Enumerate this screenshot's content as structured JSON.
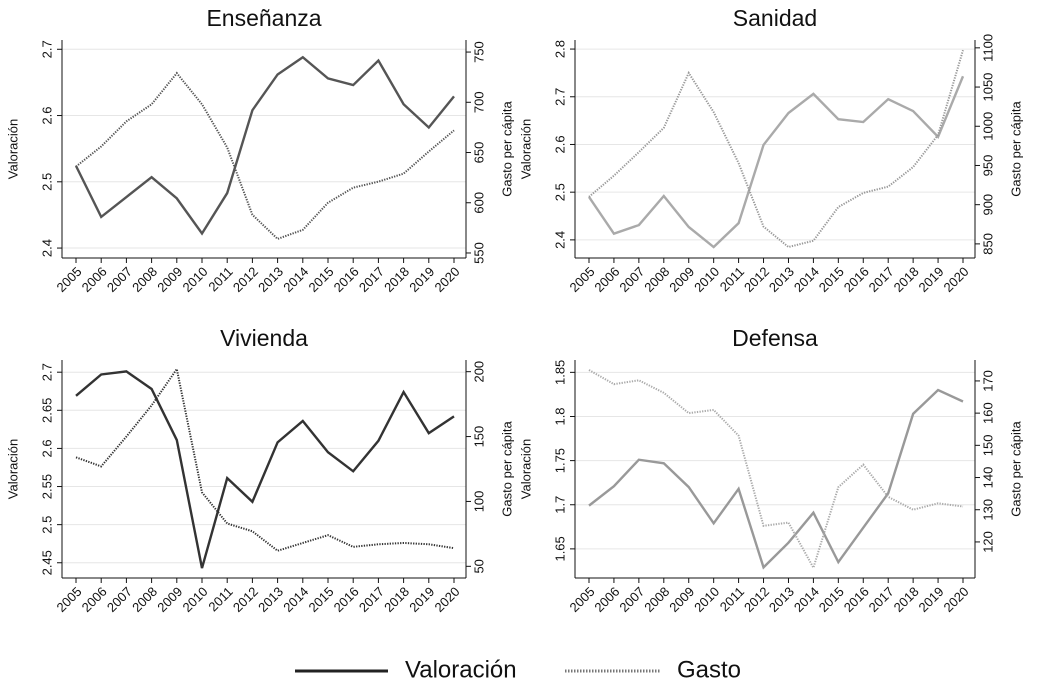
{
  "chart_data": [
    {
      "type": "line",
      "title": "Enseñanza",
      "ylabel": "Valoración",
      "y2label": "Gasto per cápita",
      "categories": [
        "2005",
        "2006",
        "2007",
        "2008",
        "2009",
        "2010",
        "2011",
        "2012",
        "2013",
        "2014",
        "2015",
        "2016",
        "2017",
        "2018",
        "2019",
        "2020"
      ],
      "ylim": [
        2.385,
        2.714
      ],
      "yticks": [
        2.4,
        2.5,
        2.6,
        2.7
      ],
      "y2lim": [
        545,
        762
      ],
      "y2ticks": [
        550,
        600,
        650,
        700,
        750
      ],
      "grid": true,
      "series": [
        {
          "name": "Valoración",
          "color": "#555555",
          "values": [
            2.524,
            2.447,
            2.477,
            2.507,
            2.475,
            2.422,
            2.483,
            2.608,
            2.662,
            2.688,
            2.656,
            2.646,
            2.683,
            2.617,
            2.582,
            2.629
          ]
        },
        {
          "name": "Gasto",
          "color": "#555555",
          "axis": "y2",
          "values": [
            636,
            656,
            681,
            698,
            729,
            698,
            655,
            588,
            564,
            573,
            600,
            615,
            621,
            629,
            651,
            672
          ]
        }
      ]
    },
    {
      "type": "line",
      "title": "Sanidad",
      "ylabel": "Valoración",
      "y2label": "Gasto per cápita",
      "categories": [
        "2005",
        "2006",
        "2007",
        "2008",
        "2009",
        "2010",
        "2011",
        "2012",
        "2013",
        "2014",
        "2015",
        "2016",
        "2017",
        "2018",
        "2019",
        "2020"
      ],
      "ylim": [
        2.362,
        2.819
      ],
      "yticks": [
        2.4,
        2.5,
        2.6,
        2.7,
        2.8
      ],
      "y2lim": [
        832,
        1110
      ],
      "y2ticks": [
        850,
        900,
        950,
        1000,
        1050,
        1100
      ],
      "grid": true,
      "series": [
        {
          "name": "Valoración",
          "color": "#aaaaaa",
          "values": [
            2.49,
            2.413,
            2.431,
            2.492,
            2.427,
            2.385,
            2.435,
            2.599,
            2.666,
            2.706,
            2.653,
            2.647,
            2.695,
            2.67,
            2.616,
            2.743
          ]
        },
        {
          "name": "Gasto",
          "color": "#999999",
          "axis": "y2",
          "values": [
            910,
            937,
            967,
            998,
            1068,
            1018,
            953,
            872,
            846,
            854,
            897,
            915,
            923,
            948,
            989,
            1097
          ]
        }
      ]
    },
    {
      "type": "line",
      "title": "Vivienda",
      "ylabel": "Valoración",
      "y2label": "Gasto per cápita",
      "categories": [
        "2005",
        "2006",
        "2007",
        "2008",
        "2009",
        "2010",
        "2011",
        "2012",
        "2013",
        "2014",
        "2015",
        "2016",
        "2017",
        "2018",
        "2019",
        "2020"
      ],
      "ylim": [
        2.43,
        2.716
      ],
      "yticks": [
        2.45,
        2.5,
        2.55,
        2.6,
        2.65,
        2.7
      ],
      "y2lim": [
        41,
        209
      ],
      "y2ticks": [
        50,
        100,
        150,
        200
      ],
      "grid": true,
      "series": [
        {
          "name": "Valoración",
          "color": "#333333",
          "values": [
            2.669,
            2.697,
            2.701,
            2.678,
            2.611,
            2.443,
            2.561,
            2.53,
            2.608,
            2.636,
            2.595,
            2.57,
            2.61,
            2.674,
            2.62,
            2.642
          ]
        },
        {
          "name": "Gasto",
          "color": "#333333",
          "axis": "y2",
          "values": [
            134,
            127,
            150,
            174,
            202,
            107,
            83,
            77,
            62,
            68,
            74,
            65,
            67,
            68,
            67,
            64
          ]
        }
      ]
    },
    {
      "type": "line",
      "title": "Defensa",
      "ylabel": "Valoración",
      "y2label": "Gasto per cápita",
      "categories": [
        "2005",
        "2006",
        "2007",
        "2008",
        "2009",
        "2010",
        "2011",
        "2012",
        "2013",
        "2014",
        "2015",
        "2016",
        "2017",
        "2018",
        "2019",
        "2020"
      ],
      "ylim": [
        1.617,
        1.864
      ],
      "yticks": [
        1.65,
        1.7,
        1.75,
        1.8,
        1.85
      ],
      "y2lim": [
        108.8,
        176.5
      ],
      "y2ticks": [
        120,
        130,
        140,
        150,
        160,
        170
      ],
      "grid": true,
      "series": [
        {
          "name": "Valoración",
          "color": "#999999",
          "values": [
            1.699,
            1.721,
            1.751,
            1.747,
            1.72,
            1.679,
            1.718,
            1.629,
            1.657,
            1.691,
            1.635,
            1.674,
            1.713,
            1.803,
            1.83,
            1.817
          ]
        },
        {
          "name": "Gasto",
          "color": "#aaaaaa",
          "axis": "y2",
          "values": [
            173.4,
            169,
            170.2,
            166.3,
            160,
            161,
            153,
            125,
            126,
            112,
            137,
            144,
            134,
            130,
            132,
            131
          ]
        }
      ]
    }
  ]
}
